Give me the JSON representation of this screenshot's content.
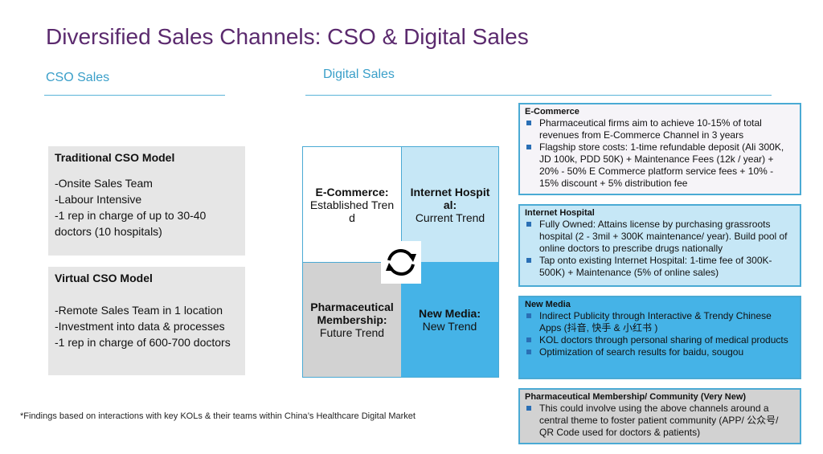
{
  "title": "Diversified Sales Channels: CSO & Digital Sales",
  "cso_sales": {
    "heading": "CSO Sales",
    "models": [
      {
        "title": "Traditional CSO Model",
        "lines": [
          "-Onsite Sales Team",
          "-Labour Intensive",
          "-1 rep in charge of up to 30-40 doctors (10 hospitals)"
        ]
      },
      {
        "title": "Virtual CSO Model",
        "lines": [
          "-Remote Sales Team in 1 location",
          "-Investment into data & processes",
          "-1 rep in charge of 600-700 doctors"
        ]
      }
    ]
  },
  "digital_sales": {
    "heading": "Digital Sales",
    "quadrants": [
      {
        "title": "E-Commerce:",
        "subtitle": "Established Trend"
      },
      {
        "title": "Internet Hospital:",
        "subtitle": "Current Trend"
      },
      {
        "title": "Pharmaceutical Membership:",
        "subtitle": "Future Trend"
      },
      {
        "title": "New Media:",
        "subtitle": "New Trend"
      }
    ],
    "channels": [
      {
        "title": "E-Commerce",
        "bullets": [
          "Pharmaceutical firms aim to achieve 10-15% of total revenues from E-Commerce Channel in 3 years",
          "Flagship store costs: 1-time refundable deposit (Ali 300K, JD 100k, PDD 50K) + Maintenance Fees (12k / year) + 20% - 50% E Commerce platform service fees + 10% - 15% discount + 5% distribution fee"
        ]
      },
      {
        "title": "Internet Hospital",
        "bullets": [
          "Fully Owned: Attains license by purchasing grassroots hospital (2 - 3mil + 300K maintenance/ year). Build pool of online doctors to prescribe drugs nationally",
          "Tap onto existing Internet Hospital: 1-time fee of 300K-500K) + Maintenance (5% of online sales)"
        ]
      },
      {
        "title": "New Media",
        "bullets": [
          "Indirect Publicity through Interactive & Trendy Chinese Apps (抖音, 快手 & 小红书 )",
          "KOL doctors through personal sharing of medical products",
          "Optimization of search results for baidu, sougou"
        ]
      },
      {
        "title": "Pharmaceutical Membership/ Community (Very New)",
        "bullets": [
          "This could involve using the above channels around a central theme to foster patient community (APP/ 公众号/ QR Code used for doctors & patients)"
        ]
      }
    ]
  },
  "footnote": "*Findings based on interactions with  key KOLs & their teams within China’s Healthcare Digital Market"
}
